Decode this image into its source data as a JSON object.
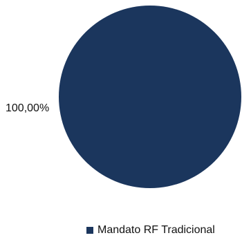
{
  "chart_data": {
    "type": "pie",
    "title": "",
    "slices": [
      {
        "name": "Mandato RF Tradicional",
        "value": 100.0,
        "label": "100,00%",
        "color": "#1b365d"
      }
    ],
    "legend_position": "bottom"
  }
}
